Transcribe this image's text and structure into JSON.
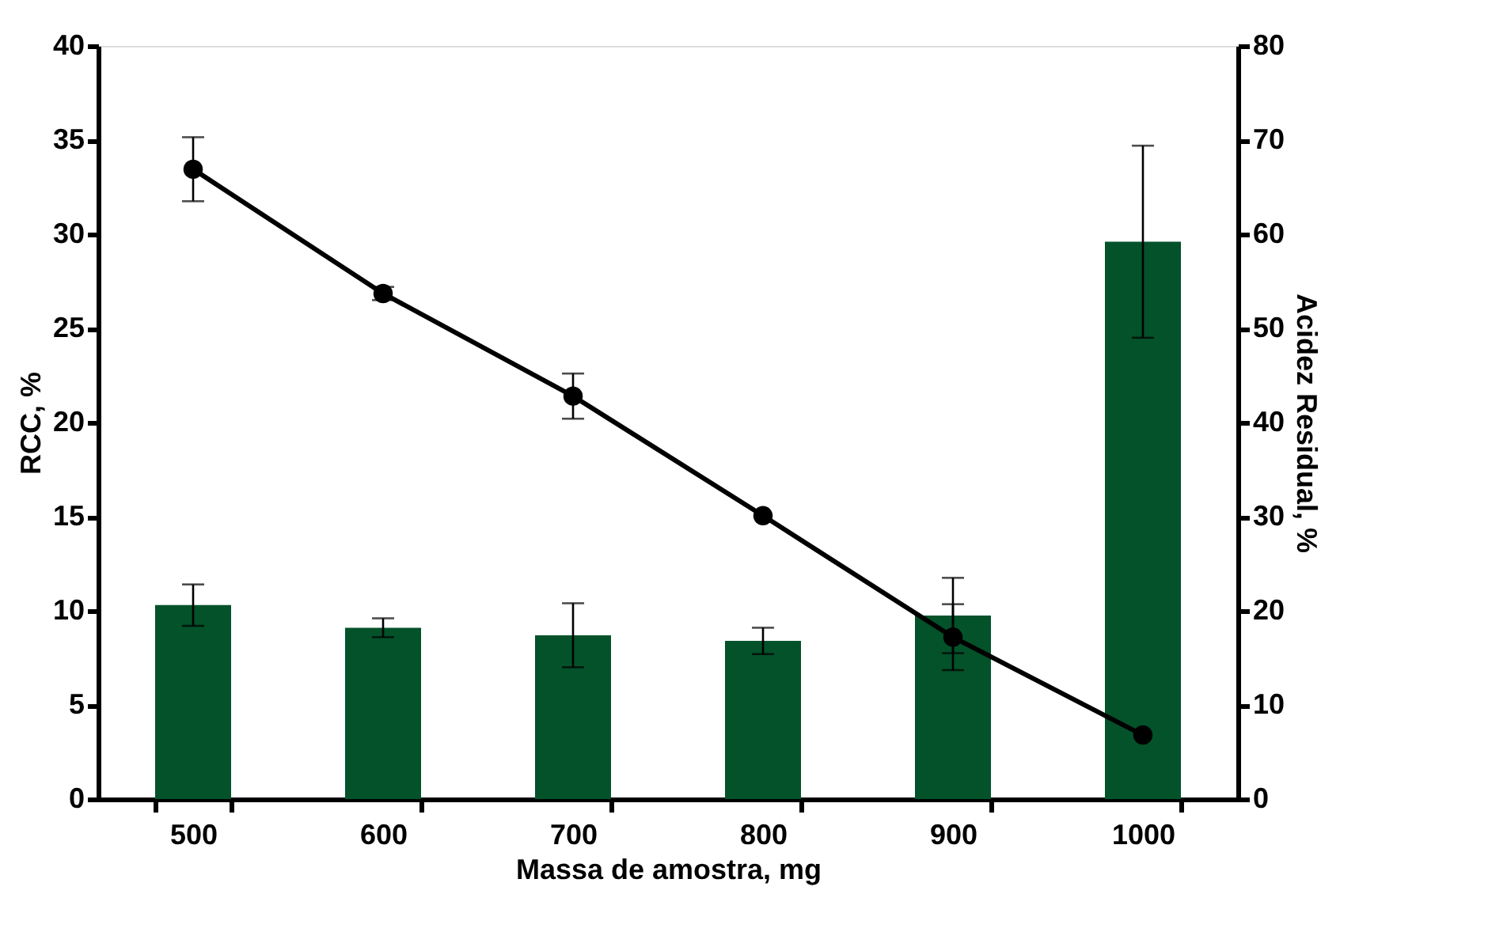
{
  "chart_data": {
    "type": "bar",
    "xlabel": "Massa de amostra, mg",
    "ylabel": "RCC, %",
    "y2label": "Acidez Residual, %",
    "categories": [
      "500",
      "600",
      "700",
      "800",
      "900",
      "1000"
    ],
    "series": [
      {
        "color": "#03522a",
        "values": [
          10.3,
          9.1,
          8.7,
          8.4,
          9.75,
          29.6
        ],
        "errors": [
          1.1,
          0.5,
          1.7,
          0.7,
          2.0,
          5.1
        ]
      },
      {
        "type": "line",
        "axis": "y2",
        "color": "#000000",
        "marker": "circle",
        "line_style": "solid",
        "values": [
          66.9,
          53.7,
          42.8,
          30.1,
          17.2,
          6.8
        ],
        "errors": [
          3.4,
          0.7,
          2.4,
          null,
          3.5,
          null
        ]
      }
    ],
    "ylim": [
      0,
      40
    ],
    "yticks": [
      0,
      5,
      10,
      15,
      20,
      25,
      30,
      35,
      40
    ],
    "y2lim": [
      0,
      80
    ],
    "y2ticks": [
      0,
      10,
      20,
      30,
      40,
      50,
      60,
      70,
      80
    ]
  }
}
